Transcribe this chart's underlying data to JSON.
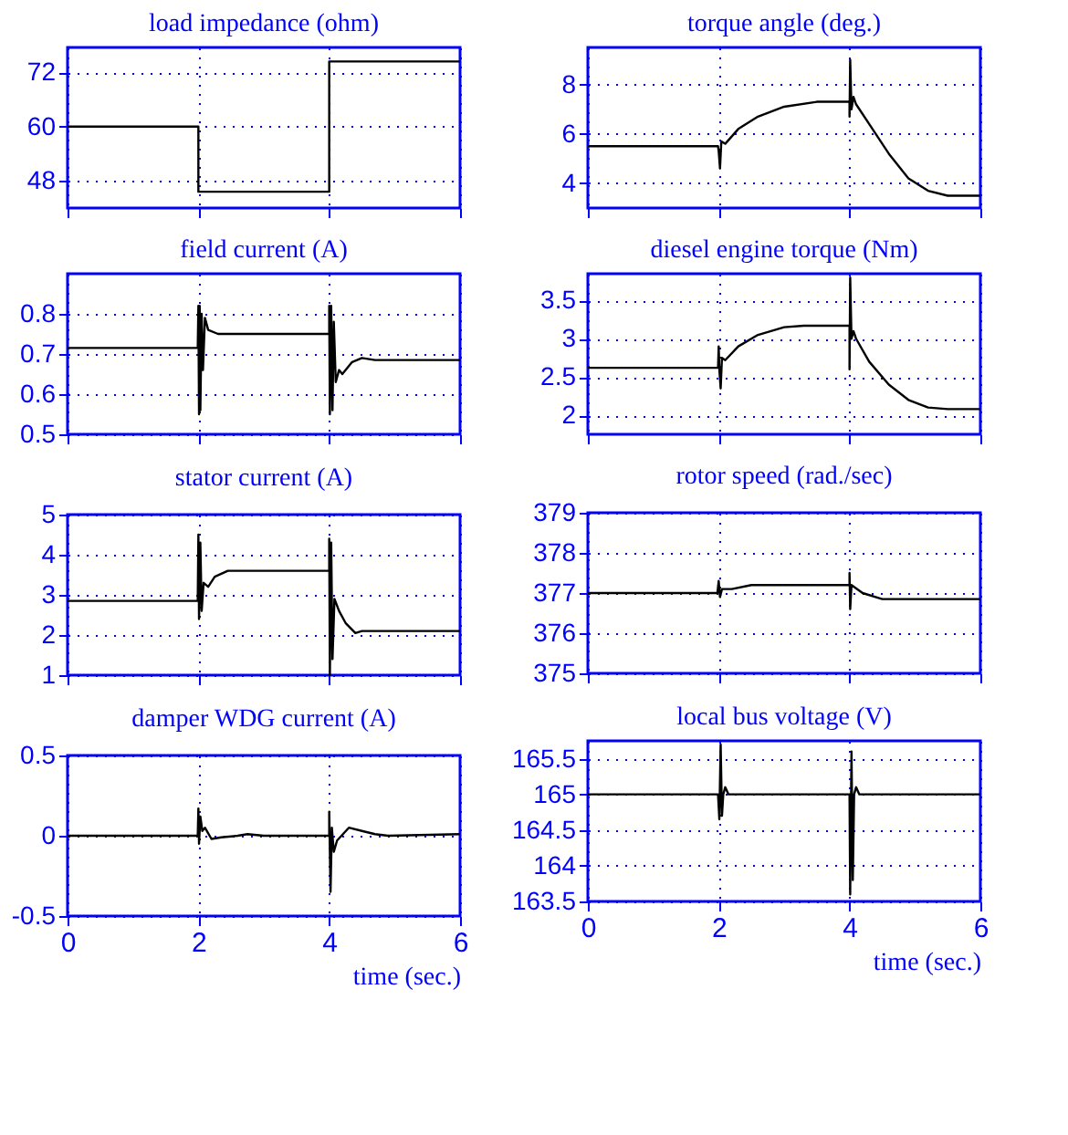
{
  "chart_data": [
    {
      "type": "line",
      "title": "load impedance (ohm)",
      "tick_labels": "y",
      "grid": true,
      "color": "#000000",
      "xlim": [
        0,
        6
      ],
      "xticks": [
        0,
        2,
        4,
        6
      ],
      "ylim": [
        42,
        77.5
      ],
      "yticks": [
        48,
        60,
        72
      ],
      "x": [
        0,
        2,
        2,
        4,
        4,
        6
      ],
      "values": [
        60,
        60,
        45.6,
        45.6,
        74.4,
        74.4
      ]
    },
    {
      "type": "line",
      "title": "field current (A)",
      "tick_labels": "y",
      "grid": true,
      "color": "#000000",
      "xlim": [
        0,
        6
      ],
      "xticks": [
        0,
        2,
        4,
        6
      ],
      "ylim": [
        0.5,
        0.9
      ],
      "yticks": [
        0.5,
        0.6,
        0.7,
        0.8
      ],
      "x": [
        0,
        1.99,
        2.0,
        2.01,
        2.02,
        2.03,
        2.05,
        2.07,
        2.1,
        2.15,
        2.3,
        4.0,
        4.0,
        4.01,
        4.03,
        4.05,
        4.07,
        4.1,
        4.15,
        4.2,
        4.35,
        4.5,
        4.7,
        6
      ],
      "values": [
        0.715,
        0.715,
        0.82,
        0.55,
        0.82,
        0.56,
        0.8,
        0.66,
        0.79,
        0.76,
        0.75,
        0.75,
        0.82,
        0.55,
        0.82,
        0.56,
        0.78,
        0.63,
        0.66,
        0.65,
        0.68,
        0.69,
        0.685,
        0.685
      ]
    },
    {
      "type": "line",
      "title": "stator current (A)",
      "tick_labels": "y",
      "grid": true,
      "color": "#000000",
      "xlim": [
        0,
        6
      ],
      "xticks": [
        0,
        2,
        4,
        6
      ],
      "ylim": [
        1,
        5
      ],
      "yticks": [
        1,
        2,
        3,
        4,
        5
      ],
      "x": [
        0,
        1.99,
        2.0,
        2.01,
        2.03,
        2.05,
        2.08,
        2.15,
        2.25,
        2.45,
        4.0,
        4.0,
        4.01,
        4.03,
        4.05,
        4.08,
        4.15,
        4.25,
        4.4,
        4.5,
        6
      ],
      "values": [
        2.85,
        2.85,
        4.5,
        2.4,
        4.3,
        2.6,
        3.3,
        3.2,
        3.45,
        3.6,
        3.6,
        4.4,
        1.0,
        4.3,
        1.4,
        2.9,
        2.6,
        2.3,
        2.05,
        2.1,
        2.1
      ]
    },
    {
      "type": "line",
      "title": "damper WDG current (A)",
      "xlabel": "time (sec.)",
      "grid": true,
      "color": "#000000",
      "xlim": [
        0,
        6
      ],
      "xticks": [
        0,
        2,
        4,
        6
      ],
      "ylim": [
        -0.5,
        0.5
      ],
      "yticks": [
        -0.5,
        0,
        0.5
      ],
      "x": [
        0,
        1.99,
        2.0,
        2.01,
        2.03,
        2.06,
        2.1,
        2.2,
        2.35,
        2.6,
        2.75,
        3,
        4.0,
        4.0,
        4.02,
        4.04,
        4.07,
        4.12,
        4.3,
        4.5,
        4.7,
        4.9,
        6
      ],
      "values": [
        0,
        0,
        0.17,
        -0.05,
        0.12,
        0.03,
        0.05,
        -0.02,
        -0.01,
        0,
        0.01,
        0,
        0,
        0.15,
        -0.35,
        0.05,
        -0.1,
        -0.03,
        0.05,
        0.03,
        0.01,
        0,
        0.01
      ]
    },
    {
      "type": "line",
      "title": "torque angle (deg.)",
      "tick_labels": "y",
      "grid": true,
      "color": "#000000",
      "xlim": [
        0,
        6
      ],
      "xticks": [
        0,
        2,
        4,
        6
      ],
      "ylim": [
        3,
        9.5
      ],
      "yticks": [
        4,
        6,
        8
      ],
      "x": [
        0,
        1.99,
        2.0,
        2.02,
        2.04,
        2.1,
        2.3,
        2.6,
        3,
        3.5,
        4,
        4.0,
        4.01,
        4.03,
        4.06,
        4.1,
        4.3,
        4.6,
        4.9,
        5.2,
        5.5,
        6
      ],
      "values": [
        5.5,
        5.5,
        5.3,
        4.6,
        5.7,
        5.6,
        6.2,
        6.7,
        7.1,
        7.3,
        7.3,
        6.7,
        9.0,
        7.0,
        7.5,
        7.2,
        6.4,
        5.2,
        4.2,
        3.7,
        3.5,
        3.5
      ]
    },
    {
      "type": "line",
      "title": "diesel engine torque (Nm)",
      "tick_labels": "y",
      "grid": true,
      "color": "#000000",
      "xlim": [
        0,
        6
      ],
      "xticks": [
        0,
        2,
        4,
        6
      ],
      "ylim": [
        1.75,
        3.85
      ],
      "yticks": [
        2,
        2.5,
        3,
        3.5
      ],
      "x": [
        0,
        1.99,
        2.0,
        2.01,
        2.03,
        2.05,
        2.1,
        2.3,
        2.6,
        3,
        3.3,
        4,
        4.0,
        4.01,
        4.03,
        4.06,
        4.1,
        4.3,
        4.6,
        4.9,
        5.2,
        5.5,
        6
      ],
      "values": [
        2.62,
        2.62,
        2.9,
        2.6,
        2.35,
        2.75,
        2.72,
        2.9,
        3.05,
        3.15,
        3.17,
        3.17,
        2.6,
        3.8,
        3.0,
        3.1,
        3.0,
        2.7,
        2.4,
        2.2,
        2.1,
        2.08,
        2.08
      ]
    },
    {
      "type": "line",
      "title": "rotor speed (rad./sec)",
      "tick_labels": "y",
      "grid": true,
      "color": "#000000",
      "xlim": [
        0,
        6
      ],
      "xticks": [
        0,
        2,
        4,
        6
      ],
      "ylim": [
        375,
        379
      ],
      "yticks": [
        375,
        376,
        377,
        378,
        379
      ],
      "x": [
        0,
        1.98,
        2.0,
        2.02,
        2.05,
        2.2,
        2.5,
        4,
        4.0,
        4.01,
        4.03,
        4.2,
        4.5,
        6
      ],
      "values": [
        377,
        377,
        377.3,
        376.9,
        377.1,
        377.1,
        377.2,
        377.2,
        377.5,
        376.6,
        377.2,
        377,
        376.85,
        376.85
      ]
    },
    {
      "type": "line",
      "title": "local bus voltage (V)",
      "xlabel": "time (sec.)",
      "grid": true,
      "color": "#000000",
      "xlim": [
        0,
        6
      ],
      "xticks": [
        0,
        2,
        4,
        6
      ],
      "ylim": [
        163.5,
        165.75
      ],
      "yticks": [
        163.5,
        164,
        164.5,
        165,
        165.5
      ],
      "x": [
        0,
        1.99,
        2.01,
        2.03,
        2.05,
        2.07,
        2.1,
        2.15,
        4,
        4.01,
        4.03,
        4.05,
        4.07,
        4.1,
        4.15,
        6
      ],
      "values": [
        165,
        165,
        164.65,
        165.7,
        164.7,
        165,
        165.1,
        165,
        165,
        163.6,
        165.6,
        163.8,
        165,
        165.1,
        165,
        165
      ]
    }
  ]
}
